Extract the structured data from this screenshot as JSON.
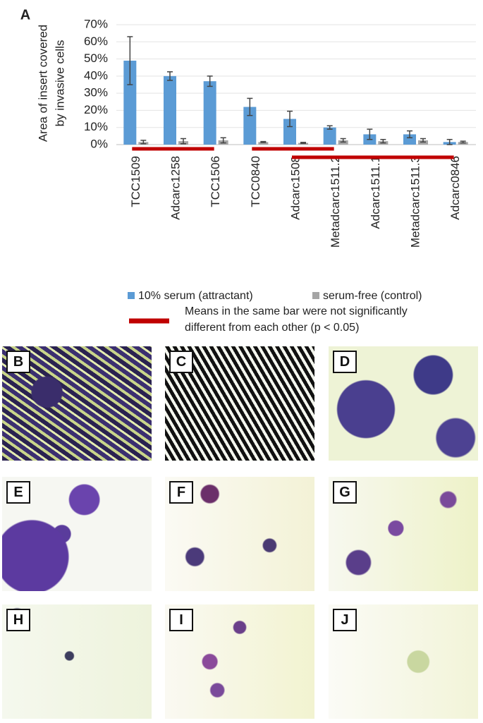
{
  "chart_data": {
    "type": "bar",
    "panel_label": "A",
    "y_label": [
      "Area of insert covered",
      "by invasive cells"
    ],
    "categories": [
      "TCC1509",
      "Adcarc1258",
      "TCC1506",
      "TCC0840",
      "Adcarc1508",
      "Metadcarc1511.2",
      "Adcarc1511.1",
      "Metadcarc1511.3",
      "Adcarc0846"
    ],
    "series": [
      {
        "name": "10% serum (attractant)",
        "color": "#5b9bd5",
        "values": [
          49,
          40,
          37,
          22,
          15,
          10,
          6,
          6,
          1.5
        ],
        "errors": [
          14,
          2.5,
          3,
          5,
          4.5,
          1,
          3,
          2,
          1.5
        ]
      },
      {
        "name": "serum-free (control)",
        "color": "#a5a5a5",
        "values": [
          1.5,
          2,
          2.5,
          1.5,
          1,
          2.5,
          2,
          2.5,
          1.5
        ],
        "errors": [
          1,
          1.5,
          1.5,
          0.3,
          0.3,
          1,
          1,
          1,
          0.5
        ]
      }
    ],
    "ylim": [
      0,
      70
    ],
    "yticks": [
      {
        "value": 0,
        "label": "0%"
      },
      {
        "value": 10,
        "label": "10%"
      },
      {
        "value": 20,
        "label": "20%"
      },
      {
        "value": 30,
        "label": "30%"
      },
      {
        "value": 40,
        "label": "40%"
      },
      {
        "value": 50,
        "label": "50%"
      },
      {
        "value": 60,
        "label": "60%"
      },
      {
        "value": 70,
        "label": "70%"
      }
    ],
    "grid": true,
    "significance_bars": [
      [
        0,
        2
      ],
      [
        3,
        5
      ],
      [
        4,
        8
      ]
    ],
    "significance_color": "#c00000",
    "significance_note": [
      "Means in the same bar were not significantly",
      "different from each other (p < 0.05)"
    ]
  },
  "image_panels": [
    "B",
    "C",
    "D",
    "E",
    "F",
    "G",
    "H",
    "I",
    "J"
  ]
}
